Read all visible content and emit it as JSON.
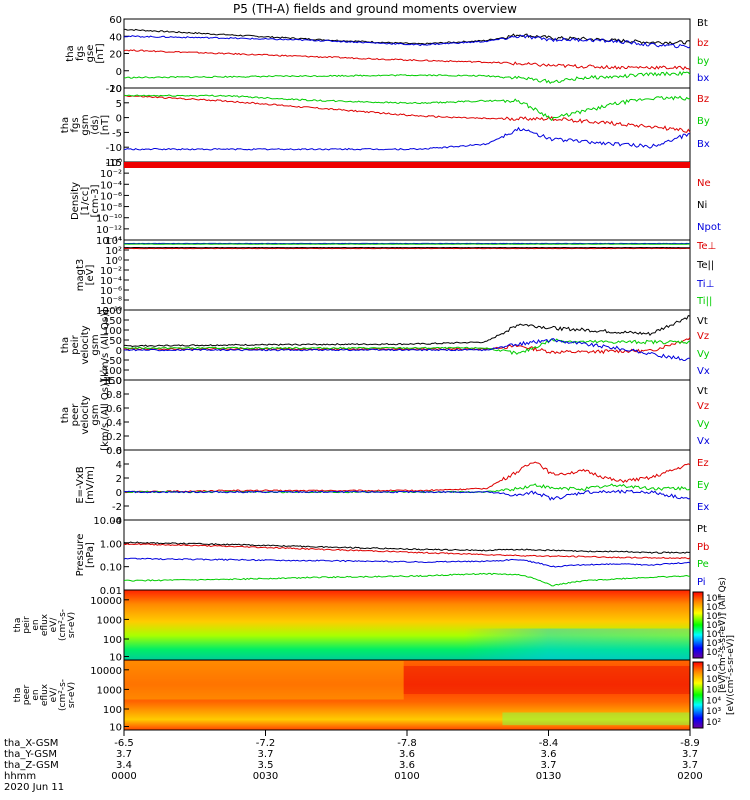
{
  "title": "P5 (TH-A) fields and ground moments overview",
  "chart_data": {
    "type": "line",
    "title": "P5 (TH-A) fields and ground moments overview",
    "panels": [
      {
        "ylabel": [
          "tha",
          "fgs",
          "gse",
          "[nT]"
        ],
        "ylim": [
          -20,
          60
        ],
        "yticks": [
          "60",
          "40",
          "20",
          "0",
          "-20"
        ],
        "log": false,
        "legend": [
          {
            "name": "Bt",
            "color": "#000000"
          },
          {
            "name": "bz",
            "color": "#dd0000"
          },
          {
            "name": "by",
            "color": "#00cc00"
          },
          {
            "name": "bx",
            "color": "#0000dd"
          }
        ],
        "series": [
          {
            "name": "Bt",
            "color": "#000000",
            "x": [
              0,
              30,
              60,
              90,
              110,
              120,
              130,
              140,
              150,
              160,
              172
            ],
            "y": [
              48,
              42,
              36,
              31,
              35,
              42,
              38,
              37,
              35,
              33,
              33
            ]
          },
          {
            "name": "bz",
            "color": "#dd0000",
            "x": [
              0,
              30,
              60,
              90,
              110,
              120,
              130,
              140,
              150,
              160,
              172
            ],
            "y": [
              24,
              20,
              16,
              12,
              10,
              8,
              6,
              5,
              4,
              4,
              3
            ]
          },
          {
            "name": "by",
            "color": "#00cc00",
            "x": [
              0,
              30,
              60,
              90,
              110,
              120,
              130,
              140,
              150,
              160,
              172
            ],
            "y": [
              -8,
              -7,
              -6,
              -5,
              -6,
              -8,
              -13,
              -8,
              -7,
              -4,
              -3
            ]
          },
          {
            "name": "bx",
            "color": "#0000dd",
            "x": [
              0,
              30,
              60,
              90,
              110,
              120,
              130,
              140,
              150,
              160,
              172
            ],
            "y": [
              40,
              38,
              35,
              30,
              34,
              40,
              36,
              36,
              34,
              30,
              28
            ]
          }
        ]
      },
      {
        "ylabel": [
          "tha",
          "fgs",
          "gsm",
          "(ds)",
          "[nT]"
        ],
        "ylim": [
          -17,
          12
        ],
        "yticks": [
          "10",
          "5",
          "0",
          "-5",
          "-10",
          "-15"
        ],
        "log": false,
        "legend": [
          {
            "name": "Bz",
            "color": "#dd0000"
          },
          {
            "name": "By",
            "color": "#00cc00"
          },
          {
            "name": "Bx",
            "color": "#0000dd"
          }
        ],
        "series": [
          {
            "name": "Bz",
            "color": "#dd0000",
            "x": [
              0,
              30,
              60,
              90,
              110,
              120,
              130,
              140,
              150,
              160,
              172
            ],
            "y": [
              9,
              7,
              4,
              1,
              0,
              0,
              0,
              -1,
              -2,
              -3,
              -5
            ]
          },
          {
            "name": "By",
            "color": "#00cc00",
            "x": [
              0,
              30,
              60,
              90,
              110,
              120,
              130,
              140,
              150,
              160,
              172
            ],
            "y": [
              9,
              9,
              7,
              6,
              7,
              7,
              0,
              3,
              6,
              8,
              8
            ]
          },
          {
            "name": "Bx",
            "color": "#0000dd",
            "x": [
              0,
              30,
              60,
              90,
              110,
              120,
              130,
              140,
              150,
              160,
              172
            ],
            "y": [
              -12,
              -12,
              -12,
              -12,
              -10,
              -4,
              -8,
              -9,
              -10,
              -11,
              -6
            ]
          }
        ]
      },
      {
        "ylabel": [
          "Density",
          "[1/cc]",
          "[cm-3]"
        ],
        "ylim": [
          1e-14,
          10
        ],
        "yticks": [
          "10⁰",
          "10⁻²",
          "10⁻⁴",
          "10⁻⁶",
          "10⁻⁸",
          "10⁻¹⁰",
          "10⁻¹²",
          "10⁻¹⁴"
        ],
        "log": true,
        "legend": [
          {
            "name": "Ne",
            "color": "#dd0000"
          },
          {
            "name": "Ni",
            "color": "#000000"
          },
          {
            "name": "Npot",
            "color": "#0000dd"
          }
        ],
        "series": [
          {
            "name": "Ne",
            "color": "#dd0000",
            "x": [
              0,
              172
            ],
            "y": [
              2,
              2
            ]
          },
          {
            "name": "Ni",
            "color": "#000000",
            "x": [
              0,
              172
            ],
            "y": [
              1,
              1
            ]
          },
          {
            "name": "Npot",
            "color": "#0000dd",
            "x": [
              0,
              172
            ],
            "y": [
              1.5,
              1.5
            ]
          }
        ]
      },
      {
        "ylabel": [
          "magt3",
          "[eV]"
        ],
        "ylim": [
          1e-10,
          10000.0
        ],
        "yticks": [
          "10⁴",
          "10²",
          "10⁰",
          "10⁻²",
          "10⁻⁴",
          "10⁻⁶",
          "10⁻⁸",
          "10⁻¹⁰"
        ],
        "log": true,
        "legend": [
          {
            "name": "Te⊥",
            "color": "#dd0000"
          },
          {
            "name": "Te||",
            "color": "#000000"
          },
          {
            "name": "Ti⊥",
            "color": "#0000dd"
          },
          {
            "name": "Ti||",
            "color": "#00cc00"
          }
        ],
        "series": [
          {
            "name": "Te⊥",
            "color": "#dd0000",
            "x": [
              0,
              172
            ],
            "y": [
              200,
              200
            ]
          },
          {
            "name": "Te||",
            "color": "#000000",
            "x": [
              0,
              172
            ],
            "y": [
              300,
              300
            ]
          },
          {
            "name": "Ti⊥",
            "color": "#0000dd",
            "x": [
              0,
              172
            ],
            "y": [
              2000,
              2000
            ]
          },
          {
            "name": "Ti||",
            "color": "#00cc00",
            "x": [
              0,
              172
            ],
            "y": [
              1500,
              1500
            ]
          }
        ]
      },
      {
        "ylabel": [
          "tha",
          "peir",
          "velocity",
          "gsm",
          "[km/s (All Qs)]"
        ],
        "ylim": [
          -150,
          200
        ],
        "yticks": [
          "200",
          "150",
          "100",
          "50",
          "0",
          "-50",
          "-100",
          "-150"
        ],
        "log": false,
        "legend": [
          {
            "name": "Vt",
            "color": "#000000"
          },
          {
            "name": "Vz",
            "color": "#dd0000"
          },
          {
            "name": "Vy",
            "color": "#00cc00"
          },
          {
            "name": "Vx",
            "color": "#0000dd"
          }
        ],
        "series": [
          {
            "name": "Vt",
            "color": "#000000",
            "x": [
              0,
              30,
              60,
              90,
              110,
              120,
              130,
              140,
              150,
              160,
              172
            ],
            "y": [
              20,
              25,
              28,
              30,
              40,
              130,
              110,
              100,
              90,
              80,
              170
            ]
          },
          {
            "name": "Vz",
            "color": "#dd0000",
            "x": [
              0,
              30,
              60,
              90,
              110,
              120,
              130,
              140,
              150,
              160,
              172
            ],
            "y": [
              5,
              5,
              5,
              5,
              5,
              20,
              -10,
              -10,
              -5,
              -5,
              60
            ]
          },
          {
            "name": "Vy",
            "color": "#00cc00",
            "x": [
              0,
              30,
              60,
              90,
              110,
              120,
              130,
              140,
              150,
              160,
              172
            ],
            "y": [
              10,
              10,
              10,
              10,
              10,
              -20,
              50,
              40,
              40,
              40,
              40
            ]
          },
          {
            "name": "Vx",
            "color": "#0000dd",
            "x": [
              0,
              30,
              60,
              90,
              110,
              120,
              130,
              140,
              150,
              160,
              172
            ],
            "y": [
              0,
              0,
              0,
              0,
              0,
              30,
              50,
              30,
              10,
              -20,
              -50
            ]
          }
        ]
      },
      {
        "ylabel": [
          "tha",
          "peer",
          "velocity",
          "gsm",
          "[km/s (All Qs)]"
        ],
        "ylim": [
          0,
          1
        ],
        "yticks": [
          "1.0",
          "0.8",
          "0.6",
          "0.4",
          "0.2",
          "0.0"
        ],
        "log": false,
        "legend": [
          {
            "name": "Vt",
            "color": "#000000"
          },
          {
            "name": "Vz",
            "color": "#dd0000"
          },
          {
            "name": "Vy",
            "color": "#00cc00"
          },
          {
            "name": "Vx",
            "color": "#0000dd"
          }
        ],
        "series": []
      },
      {
        "ylabel": [
          "E=-VxB",
          "[mV/m]"
        ],
        "ylim": [
          -4,
          6
        ],
        "yticks": [
          "6",
          "4",
          "2",
          "0",
          "-2",
          "-4"
        ],
        "log": false,
        "legend": [
          {
            "name": "Ez",
            "color": "#dd0000"
          },
          {
            "name": "Ey",
            "color": "#00cc00"
          },
          {
            "name": "Ex",
            "color": "#0000dd"
          }
        ],
        "series": [
          {
            "name": "Ez",
            "color": "#dd0000",
            "x": [
              0,
              30,
              60,
              90,
              110,
              120,
              125,
              130,
              140,
              150,
              160,
              172
            ],
            "y": [
              0,
              0.2,
              0.2,
              0.2,
              0.5,
              3,
              4.5,
              2.5,
              3,
              1.5,
              2,
              4
            ]
          },
          {
            "name": "Ey",
            "color": "#00cc00",
            "x": [
              0,
              30,
              60,
              90,
              110,
              120,
              125,
              130,
              140,
              150,
              160,
              172
            ],
            "y": [
              0,
              0,
              0,
              0,
              0,
              0.5,
              1,
              0.5,
              0.5,
              1,
              0.5,
              0.5
            ]
          },
          {
            "name": "Ex",
            "color": "#0000dd",
            "x": [
              0,
              30,
              60,
              90,
              110,
              120,
              125,
              130,
              140,
              150,
              160,
              172
            ],
            "y": [
              0,
              0,
              0,
              0,
              0,
              -0.5,
              0,
              -1,
              0,
              0,
              0,
              -1
            ]
          }
        ]
      },
      {
        "ylabel": [
          "Pressure",
          "[nPa]"
        ],
        "ylim": [
          0.01,
          10
        ],
        "yticks": [
          "10.00",
          "1.00",
          "0.10",
          "0.01"
        ],
        "log": true,
        "legend": [
          {
            "name": "Pt",
            "color": "#000000"
          },
          {
            "name": "Pb",
            "color": "#dd0000"
          },
          {
            "name": "Pe",
            "color": "#00cc00"
          },
          {
            "name": "Pi",
            "color": "#0000dd"
          }
        ],
        "series": [
          {
            "name": "Pt",
            "color": "#000000",
            "x": [
              0,
              30,
              60,
              90,
              110,
              120,
              130,
              140,
              150,
              160,
              172
            ],
            "y": [
              1.1,
              0.9,
              0.7,
              0.55,
              0.5,
              0.55,
              0.5,
              0.45,
              0.45,
              0.4,
              0.4
            ]
          },
          {
            "name": "Pb",
            "color": "#dd0000",
            "x": [
              0,
              30,
              60,
              90,
              110,
              120,
              130,
              140,
              150,
              160,
              172
            ],
            "y": [
              0.95,
              0.75,
              0.55,
              0.4,
              0.33,
              0.3,
              0.28,
              0.27,
              0.25,
              0.24,
              0.23
            ]
          },
          {
            "name": "Pe",
            "color": "#00cc00",
            "x": [
              0,
              30,
              60,
              90,
              110,
              120,
              130,
              140,
              150,
              160,
              172
            ],
            "y": [
              0.025,
              0.028,
              0.035,
              0.04,
              0.05,
              0.045,
              0.015,
              0.025,
              0.03,
              0.035,
              0.04
            ]
          },
          {
            "name": "Pi",
            "color": "#0000dd",
            "x": [
              0,
              30,
              60,
              90,
              110,
              120,
              130,
              140,
              150,
              160,
              172
            ],
            "y": [
              0.22,
              0.2,
              0.18,
              0.16,
              0.17,
              0.2,
              0.1,
              0.12,
              0.13,
              0.12,
              0.15
            ]
          }
        ]
      }
    ],
    "spectrograms": [
      {
        "ylabel": [
          "tha",
          "peir",
          "en",
          "eflux",
          "eV/",
          "(cm²-s-",
          "sr-eV)"
        ],
        "yticks": [
          "10000",
          "1000",
          "100",
          "10"
        ],
        "colorbar_ticks": [
          "10⁸",
          "10⁷",
          "10⁶",
          "10⁵",
          "10⁴",
          "10³",
          "10²"
        ],
        "colorbar_label": "[eV/(cm²-s-sr-eV)] (All Qs)"
      },
      {
        "ylabel": [
          "tha",
          "peer",
          "en",
          "eflux",
          "eV/",
          "(cm²-s-",
          "sr-eV)"
        ],
        "yticks": [
          "10000",
          "1000",
          "100",
          "10"
        ],
        "colorbar_ticks": [
          "10⁷",
          "10⁶",
          "10⁵",
          "10⁴",
          "10³",
          "10²"
        ],
        "colorbar_label": "[eV/(cm²-s-sr-eV)]"
      }
    ],
    "xaxis": {
      "rows": [
        {
          "label": "tha_X-GSM",
          "values": [
            "-6.5",
            "-7.2",
            "-7.8",
            "-8.4",
            "-8.9"
          ]
        },
        {
          "label": "tha_Y-GSM",
          "values": [
            "3.7",
            "3.7",
            "3.6",
            "3.6",
            "3.7"
          ]
        },
        {
          "label": "tha_Z-GSM",
          "values": [
            "3.4",
            "3.5",
            "3.6",
            "3.7",
            "3.7"
          ]
        },
        {
          "label": "hhmm",
          "values": [
            "0000",
            "0030",
            "0100",
            "0130",
            "0200"
          ]
        }
      ],
      "date": "2020 Jun 11"
    }
  }
}
